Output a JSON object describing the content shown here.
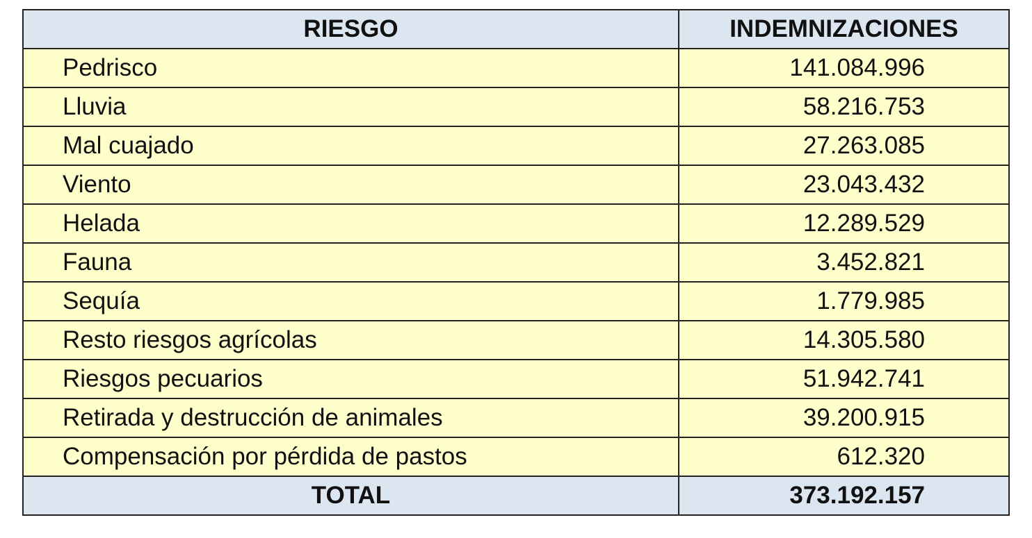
{
  "table": {
    "header": [
      "RIESGO",
      "INDEMNIZACIONES"
    ],
    "rows": [
      [
        "Pedrisco",
        "141.084.996"
      ],
      [
        "Lluvia",
        "58.216.753"
      ],
      [
        "Mal cuajado",
        "27.263.085"
      ],
      [
        "Viento",
        "23.043.432"
      ],
      [
        "Helada",
        "12.289.529"
      ],
      [
        "Fauna",
        "3.452.821"
      ],
      [
        "Sequía",
        "1.779.985"
      ],
      [
        "Resto riesgos agrícolas",
        "14.305.580"
      ],
      [
        "Riesgos pecuarios",
        "51.942.741"
      ],
      [
        "Retirada y destrucción de animales",
        "39.200.915"
      ],
      [
        "Compensación por pérdida de pastos",
        "612.320"
      ]
    ],
    "total": [
      "TOTAL",
      "373.192.157"
    ]
  }
}
